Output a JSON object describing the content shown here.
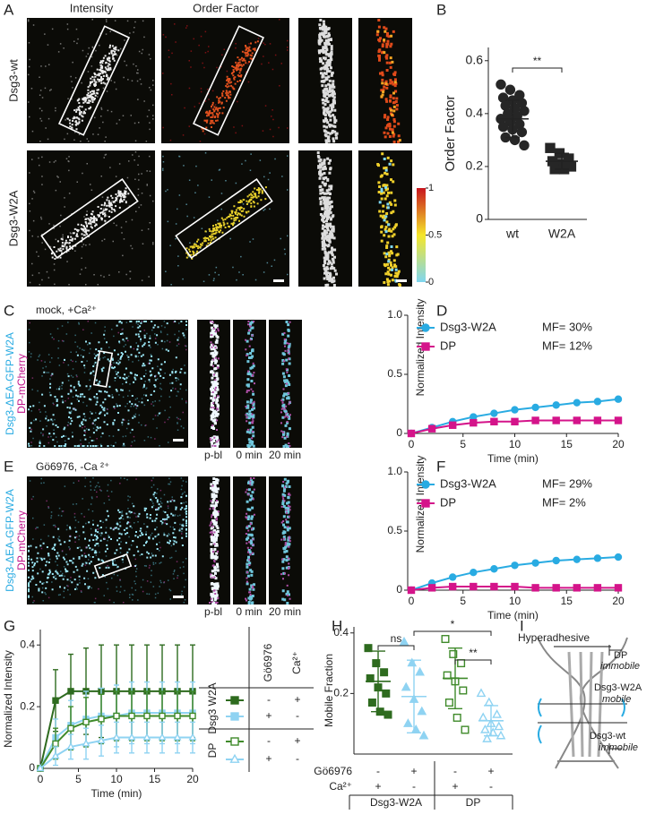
{
  "panel_labels": [
    "A",
    "B",
    "C",
    "D",
    "E",
    "F",
    "G",
    "H",
    "I"
  ],
  "panel_a": {
    "column_titles": [
      "Intensity",
      "Order Factor"
    ],
    "row_labels": [
      "Dsg3-wt",
      "Dsg3-W2A"
    ],
    "colorbar_ticks": [
      1,
      0.5,
      0
    ]
  },
  "panel_c": {
    "condition": "mock, +Ca²⁺",
    "channels": [
      "Dsg3-ΔEA-GFP-W2A",
      "DP-mCherry"
    ],
    "frame_labels": [
      "p-bl",
      "0 min",
      "20 min"
    ]
  },
  "panel_e": {
    "condition": "Gö6976, -Ca ²⁺",
    "channels": [
      "Dsg3-ΔEA-GFP-W2A",
      "DP-mCherry"
    ],
    "frame_labels": [
      "p-bl",
      "0 min",
      "20 min"
    ]
  },
  "panel_i": {
    "title": "Hyperadhesive",
    "labels": [
      "DP",
      "immobile",
      "Dsg3-W2A",
      "mobile",
      "Dsg3-wt",
      "immobile"
    ]
  },
  "chart_data": [
    {
      "type": "strip",
      "ylabel": "Order Factor",
      "categories": [
        "wt",
        "W2A"
      ],
      "values": [
        [
          0.51,
          0.49,
          0.47,
          0.46,
          0.45,
          0.44,
          0.43,
          0.42,
          0.41,
          0.4,
          0.39,
          0.38,
          0.37,
          0.36,
          0.35,
          0.34,
          0.33,
          0.31,
          0.3,
          0.28
        ],
        [
          0.27,
          0.25,
          0.23,
          0.22,
          0.21,
          0.2,
          0.19,
          0.19
        ]
      ],
      "means": [
        0.38,
        0.22
      ],
      "sd": [
        0.07,
        0.03
      ],
      "markers": [
        "circle",
        "square"
      ],
      "colors": [
        "#262626",
        "#262626"
      ],
      "ylim": [
        0,
        0.65
      ],
      "yticks": [
        0,
        0.2,
        0.4,
        0.6
      ],
      "annotations": [
        "**"
      ]
    },
    {
      "type": "line",
      "ylabel": "Normalized Intensity",
      "xlabel": "Time (min)",
      "x": [
        0,
        2,
        4,
        6,
        8,
        10,
        12,
        14,
        16,
        18,
        20
      ],
      "series": [
        {
          "name": "Dsg3-W2A",
          "color": "#29abe2",
          "marker": "circle",
          "values": [
            0,
            0.05,
            0.1,
            0.14,
            0.17,
            0.2,
            0.22,
            0.24,
            0.26,
            0.27,
            0.29
          ]
        },
        {
          "name": "DP",
          "color": "#d4148a",
          "marker": "square",
          "values": [
            0,
            0.04,
            0.07,
            0.09,
            0.1,
            0.1,
            0.11,
            0.11,
            0.11,
            0.11,
            0.11
          ]
        }
      ],
      "annotations": [
        "MF= 30%",
        "MF= 12%"
      ],
      "legend": "upper left",
      "xlim": [
        0,
        20
      ],
      "xticks": [
        0,
        5,
        10,
        15,
        20
      ],
      "ylim": [
        0,
        1
      ],
      "yticks": [
        0,
        0.5,
        {
          "value": 1,
          "label": "1.0"
        }
      ]
    },
    {
      "type": "line",
      "ylabel": "Normalized Intensity",
      "xlabel": "Time (min)",
      "x": [
        0,
        2,
        4,
        6,
        8,
        10,
        12,
        14,
        16,
        18,
        20
      ],
      "series": [
        {
          "name": "Dsg3-W2A",
          "color": "#29abe2",
          "marker": "circle",
          "values": [
            0,
            0.06,
            0.11,
            0.15,
            0.18,
            0.21,
            0.23,
            0.25,
            0.26,
            0.27,
            0.28
          ]
        },
        {
          "name": "DP",
          "color": "#d4148a",
          "marker": "square",
          "values": [
            0,
            0.02,
            0.03,
            0.03,
            0.03,
            0.03,
            0.02,
            0.02,
            0.02,
            0.02,
            0.02
          ]
        }
      ],
      "annotations": [
        "MF= 29%",
        "MF= 2%"
      ],
      "legend": "upper left",
      "xlim": [
        0,
        20
      ],
      "xticks": [
        0,
        5,
        10,
        15,
        20
      ],
      "ylim": [
        0,
        1
      ],
      "yticks": [
        0,
        0.5,
        {
          "value": 1,
          "label": "1.0"
        }
      ]
    },
    {
      "type": "line",
      "ylabel": "Normalized Intensity",
      "xlabel": "Time (min)",
      "x": [
        0,
        2,
        4,
        6,
        8,
        10,
        12,
        14,
        16,
        18,
        20
      ],
      "series": [
        {
          "color": "#2e6b1f",
          "marker": "square",
          "values": [
            0,
            0.22,
            0.25,
            0.25,
            0.25,
            0.25,
            0.25,
            0.25,
            0.25,
            0.25,
            0.25
          ],
          "errors": [
            0,
            0.1,
            0.12,
            0.14,
            0.15,
            0.15,
            0.15,
            0.15,
            0.15,
            0.15,
            0.15
          ]
        },
        {
          "color": "#8fd3f2",
          "marker": "square",
          "values": [
            0,
            0.1,
            0.14,
            0.16,
            0.17,
            0.17,
            0.18,
            0.18,
            0.18,
            0.18,
            0.18
          ],
          "errors": [
            0,
            0.06,
            0.08,
            0.09,
            0.09,
            0.1,
            0.1,
            0.1,
            0.1,
            0.1,
            0.1
          ]
        },
        {
          "color": "#3f8a2a",
          "marker": "square-open",
          "values": [
            0,
            0.08,
            0.13,
            0.15,
            0.16,
            0.17,
            0.17,
            0.17,
            0.17,
            0.17,
            0.17
          ],
          "errors": [
            0,
            0.05,
            0.07,
            0.08,
            0.08,
            0.08,
            0.08,
            0.08,
            0.08,
            0.08,
            0.08
          ]
        },
        {
          "color": "#8fd3f2",
          "marker": "triangle-open",
          "values": [
            0,
            0.04,
            0.07,
            0.08,
            0.09,
            0.1,
            0.1,
            0.1,
            0.1,
            0.1,
            0.1
          ],
          "errors": [
            0,
            0.03,
            0.04,
            0.05,
            0.05,
            0.05,
            0.05,
            0.05,
            0.05,
            0.05,
            0.05
          ]
        }
      ],
      "legend_table": {
        "columns": [
          "Gö6976",
          "Ca²⁺"
        ],
        "groups": [
          "Dsg3 W2A",
          "DP"
        ],
        "rows": [
          [
            "-",
            "+"
          ],
          [
            "+",
            "-"
          ],
          [
            "-",
            "+"
          ],
          [
            "+",
            "-"
          ]
        ]
      },
      "xlim": [
        0,
        20
      ],
      "xticks": [
        0,
        5,
        10,
        15,
        20
      ],
      "ylim": [
        0,
        0.45
      ],
      "yticks": [
        0,
        0.2,
        0.4
      ]
    },
    {
      "type": "strip",
      "ylabel": "Mobile Fraction",
      "values": [
        [
          0.35,
          0.3,
          0.27,
          0.25,
          0.22,
          0.2,
          0.17,
          0.14,
          0.13
        ],
        [
          0.37,
          0.3,
          0.27,
          0.22,
          0.18,
          0.14,
          0.1,
          0.08,
          0.06
        ],
        [
          0.38,
          0.33,
          0.3,
          0.26,
          0.24,
          0.21,
          0.17,
          0.12,
          0.08
        ],
        [
          0.2,
          0.17,
          0.13,
          0.12,
          0.1,
          0.09,
          0.08,
          0.07,
          0.06,
          0.05
        ]
      ],
      "means": [
        0.24,
        0.19,
        0.25,
        0.11
      ],
      "sd": [
        0.1,
        0.12,
        0.1,
        0.05
      ],
      "markers": [
        "square",
        "triangle",
        "square-open",
        "triangle-open"
      ],
      "colors": [
        "#2e6b1f",
        "#8fd3f2",
        "#3f8a2a",
        "#8fd3f2"
      ],
      "annotations": [
        "ns",
        "*",
        "**"
      ],
      "condition_rows": [
        {
          "label": "Gö6976",
          "values": [
            "-",
            "+",
            "-",
            "+"
          ]
        },
        {
          "label": "Ca²⁺",
          "values": [
            "+",
            "-",
            "+",
            "-"
          ]
        }
      ],
      "groups": [
        "Dsg3-W2A",
        "DP"
      ],
      "ylim": [
        0,
        0.42
      ],
      "yticks": [
        0.2,
        0.4
      ]
    }
  ]
}
